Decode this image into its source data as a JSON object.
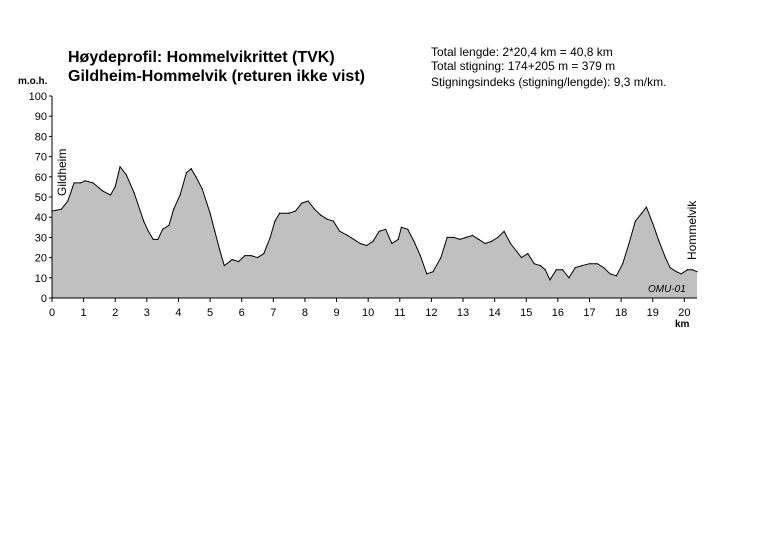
{
  "header": {
    "title_line1": "Høydeprofil:  Hommelvikrittet (TVK)",
    "title_line2": "Gildheim-Hommelvik (returen ikke vist)",
    "stat_total_length": "Total lengde: 2*20,4 km = 40,8 km",
    "stat_total_climb": "Total stigning: 174+205 m = 379 m",
    "stat_climb_index": "Stigningsindeks (stigning/lengde):  9,3 m/km."
  },
  "chart_data": {
    "type": "area",
    "title": "Høydeprofil:  Hommelvikrittet (TVK)",
    "ylabel": "m.o.h.",
    "xlabel": "km",
    "xlim": [
      0,
      20.4
    ],
    "ylim": [
      0,
      100
    ],
    "x_ticks": [
      0,
      1,
      2,
      3,
      4,
      5,
      6,
      7,
      8,
      9,
      10,
      11,
      12,
      13,
      14,
      15,
      16,
      17,
      18,
      19,
      20
    ],
    "y_ticks": [
      0,
      10,
      20,
      30,
      40,
      50,
      60,
      70,
      80,
      90,
      100
    ],
    "grid": false,
    "fill_color": "#c0c0c0",
    "line_color": "#000000",
    "annotations": {
      "start": "Gildheim",
      "end": "Hommelvik",
      "signature": "OMU-01"
    },
    "points": [
      [
        0,
        43
      ],
      [
        0.3,
        44
      ],
      [
        0.5,
        48
      ],
      [
        0.7,
        57
      ],
      [
        0.9,
        57
      ],
      [
        1.05,
        58
      ],
      [
        1.3,
        57
      ],
      [
        1.6,
        53
      ],
      [
        1.85,
        51
      ],
      [
        2.0,
        55
      ],
      [
        2.15,
        65
      ],
      [
        2.35,
        61
      ],
      [
        2.6,
        52
      ],
      [
        2.9,
        38
      ],
      [
        3.05,
        33
      ],
      [
        3.2,
        29
      ],
      [
        3.35,
        29
      ],
      [
        3.5,
        34
      ],
      [
        3.7,
        36
      ],
      [
        3.85,
        44
      ],
      [
        4.05,
        51
      ],
      [
        4.25,
        62
      ],
      [
        4.4,
        64
      ],
      [
        4.55,
        60
      ],
      [
        4.75,
        54
      ],
      [
        5.0,
        42
      ],
      [
        5.15,
        33
      ],
      [
        5.3,
        24
      ],
      [
        5.45,
        16
      ],
      [
        5.7,
        19
      ],
      [
        5.9,
        18
      ],
      [
        6.1,
        21
      ],
      [
        6.3,
        21
      ],
      [
        6.5,
        20
      ],
      [
        6.7,
        22
      ],
      [
        6.9,
        30
      ],
      [
        7.05,
        38
      ],
      [
        7.2,
        42
      ],
      [
        7.5,
        42
      ],
      [
        7.7,
        43
      ],
      [
        7.9,
        47
      ],
      [
        8.1,
        48
      ],
      [
        8.3,
        44
      ],
      [
        8.5,
        41
      ],
      [
        8.7,
        39
      ],
      [
        8.9,
        38
      ],
      [
        9.1,
        33
      ],
      [
        9.35,
        31
      ],
      [
        9.55,
        29
      ],
      [
        9.75,
        27
      ],
      [
        9.95,
        26
      ],
      [
        10.15,
        28
      ],
      [
        10.35,
        33
      ],
      [
        10.55,
        34
      ],
      [
        10.75,
        27
      ],
      [
        10.95,
        29
      ],
      [
        11.05,
        35
      ],
      [
        11.25,
        34
      ],
      [
        11.45,
        28
      ],
      [
        11.65,
        21
      ],
      [
        11.85,
        12
      ],
      [
        12.05,
        13
      ],
      [
        12.3,
        20
      ],
      [
        12.5,
        30
      ],
      [
        12.7,
        30
      ],
      [
        12.9,
        29
      ],
      [
        13.1,
        30
      ],
      [
        13.3,
        31
      ],
      [
        13.5,
        29
      ],
      [
        13.7,
        27
      ],
      [
        13.9,
        28
      ],
      [
        14.1,
        30
      ],
      [
        14.3,
        33
      ],
      [
        14.5,
        27
      ],
      [
        14.7,
        23
      ],
      [
        14.85,
        20
      ],
      [
        15.05,
        22
      ],
      [
        15.25,
        17
      ],
      [
        15.45,
        16
      ],
      [
        15.6,
        14
      ],
      [
        15.75,
        9
      ],
      [
        15.95,
        14
      ],
      [
        16.15,
        14
      ],
      [
        16.35,
        10
      ],
      [
        16.55,
        15
      ],
      [
        16.75,
        16
      ],
      [
        17.0,
        17
      ],
      [
        17.25,
        17
      ],
      [
        17.45,
        15
      ],
      [
        17.65,
        12
      ],
      [
        17.85,
        11
      ],
      [
        18.05,
        17
      ],
      [
        18.25,
        27
      ],
      [
        18.45,
        38
      ],
      [
        18.65,
        42
      ],
      [
        18.8,
        45
      ],
      [
        19.0,
        37
      ],
      [
        19.2,
        28
      ],
      [
        19.4,
        20
      ],
      [
        19.55,
        15
      ],
      [
        19.75,
        13
      ],
      [
        19.9,
        12
      ],
      [
        20.1,
        14
      ],
      [
        20.25,
        14
      ],
      [
        20.4,
        13
      ]
    ]
  }
}
